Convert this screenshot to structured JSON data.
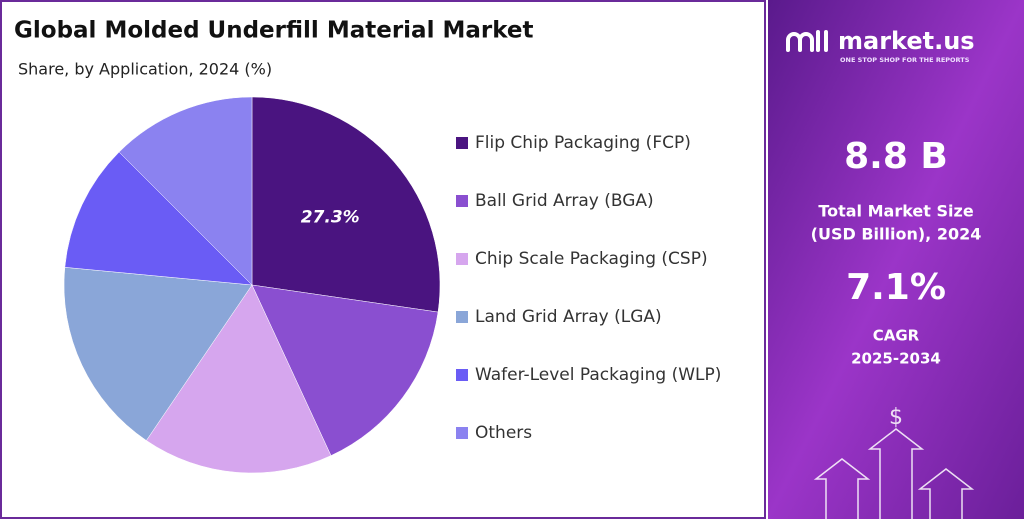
{
  "chart_data": {
    "type": "pie",
    "title": "Global Molded Underfill Material Market",
    "subtitle": "Share, by Application, 2024 (%)",
    "categories": [
      "Flip Chip Packaging (FCP)",
      "Ball Grid Array (BGA)",
      "Chip Scale Packaging (CSP)",
      "Land Grid Array (LGA)",
      "Wafer-Level Packaging (WLP)",
      "Others"
    ],
    "values": [
      27.3,
      15.8,
      16.4,
      17.0,
      11.0,
      12.5
    ],
    "value_labels": [
      "27.3%",
      null,
      null,
      null,
      null,
      null
    ],
    "colors": [
      "#4a1480",
      "#8a4fd0",
      "#d6a6ee",
      "#8aa6d8",
      "#6a5cf5",
      "#8b82f0"
    ],
    "legend": "right"
  },
  "sidebar": {
    "brand": "market.us",
    "tagline": "ONE STOP SHOP FOR THE REPORTS",
    "market_size": "8.8 B",
    "market_size_label_1": "Total Market Size",
    "market_size_label_2": "(USD Billion), 2024",
    "cagr": "7.1%",
    "cagr_label_1": "CAGR",
    "cagr_label_2": "2025-2034"
  }
}
